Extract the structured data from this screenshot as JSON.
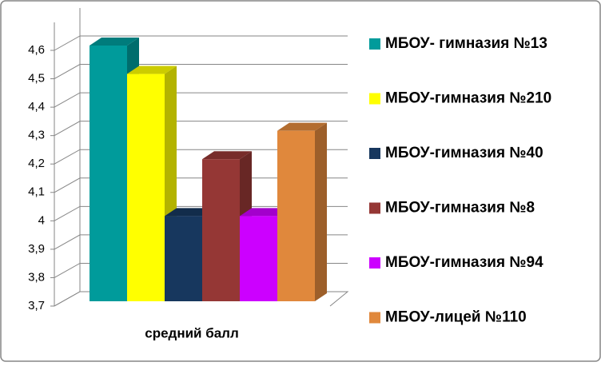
{
  "chart_data": {
    "type": "bar3d",
    "categories": [
      "средний балл"
    ],
    "series": [
      {
        "name": "МБОУ- гимназия №13",
        "color": "#009b9b",
        "values": [
          4.6
        ]
      },
      {
        "name": "МБОУ-гимназия №210",
        "color": "#ffff00",
        "values": [
          4.5
        ]
      },
      {
        "name": "МБОУ-гимназия №40",
        "color": "#17375e",
        "values": [
          4.0
        ]
      },
      {
        "name": "МБОУ-гимназия №8",
        "color": "#953735",
        "values": [
          4.2
        ]
      },
      {
        "name": "МБОУ-гимназия №94",
        "color": "#cc00ff",
        "values": [
          4.0
        ]
      },
      {
        "name": "МБОУ-лицей №110",
        "color": "#e0883c",
        "values": [
          4.3
        ]
      }
    ],
    "ylim": [
      3.7,
      4.6
    ],
    "yticks": [
      {
        "value": 3.7,
        "label": "3,7"
      },
      {
        "value": 3.8,
        "label": "3,8"
      },
      {
        "value": 3.9,
        "label": "3,9"
      },
      4,
      {
        "value": 4.1,
        "label": "4,1"
      },
      {
        "value": 4.2,
        "label": "4,2"
      },
      {
        "value": 4.3,
        "label": "4,3"
      },
      {
        "value": 4.4,
        "label": "4,4"
      },
      {
        "value": 4.5,
        "label": "4,5"
      },
      {
        "value": 4.6,
        "label": "4,6"
      }
    ],
    "grid": true,
    "legend": "right"
  }
}
